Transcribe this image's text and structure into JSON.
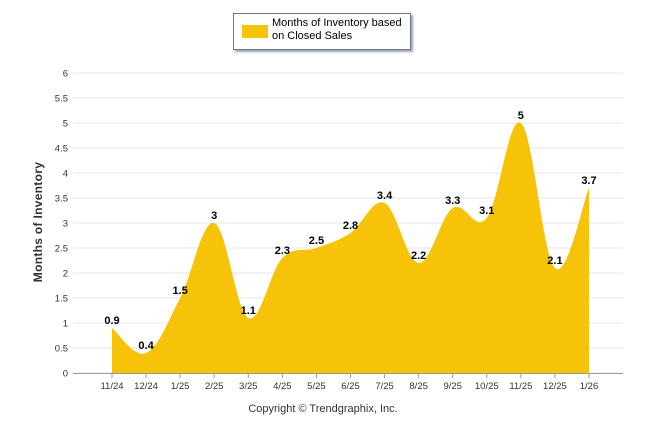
{
  "chart_data": {
    "type": "area",
    "title": "",
    "xlabel": "",
    "ylabel": "Months of Inventory",
    "ylim": [
      0,
      6
    ],
    "yticks": [
      0,
      0.5,
      1,
      1.5,
      2,
      2.5,
      3,
      3.5,
      4,
      4.5,
      5,
      5.5,
      6
    ],
    "ytick_labels": [
      "0",
      "0.5",
      "1",
      "1.5",
      "2",
      "2.5",
      "3",
      "3.5",
      "4",
      "4.5",
      "5",
      "5.5",
      "6"
    ],
    "categories": [
      "11/24",
      "12/24",
      "1/25",
      "2/25",
      "3/25",
      "4/25",
      "5/25",
      "6/25",
      "7/25",
      "8/25",
      "9/25",
      "10/25",
      "11/25",
      "12/25",
      "1/26"
    ],
    "series": [
      {
        "name": "Months of Inventory based on Closed Sales",
        "values": [
          0.9,
          0.4,
          1.5,
          3,
          1.1,
          2.3,
          2.5,
          2.8,
          3.4,
          2.2,
          3.3,
          3.1,
          5,
          2.1,
          3.7
        ],
        "labels": [
          "0.9",
          "0.4",
          "1.5",
          "3",
          "1.1",
          "2.3",
          "2.5",
          "2.8",
          "3.4",
          "2.2",
          "3.3",
          "3.1",
          "5",
          "2.1",
          "3.7"
        ],
        "color": "#F7C308"
      }
    ],
    "legend": {
      "position": "top-center",
      "label": "Months of Inventory based on Closed Sales"
    },
    "grid": true
  },
  "footer": {
    "copyright": "Copyright © Trendgraphix, Inc."
  },
  "colors": {
    "area_fill": "#F7C308",
    "grid": "#e6e6e6",
    "axis": "#999999"
  }
}
